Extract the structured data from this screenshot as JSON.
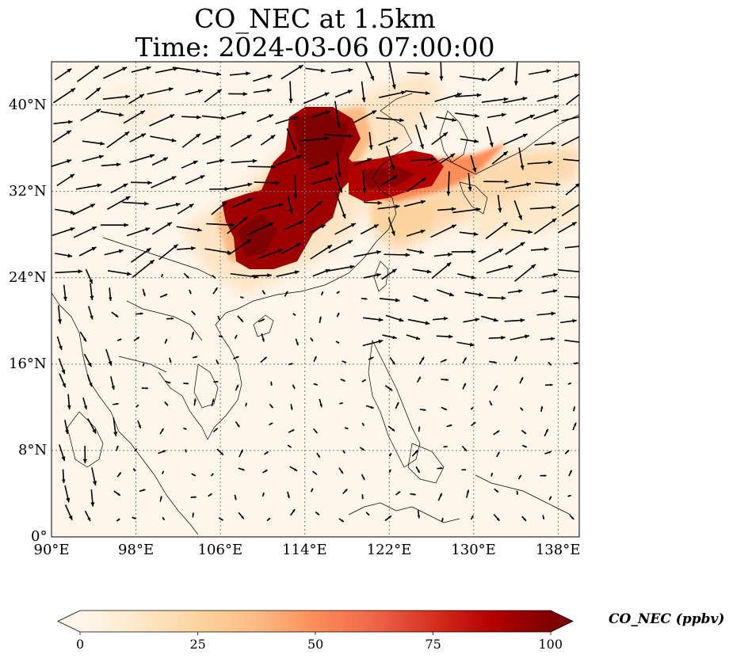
{
  "title": {
    "line1": "CO_NEC at 1.5km",
    "line2": "Time: 2024-03-06 07:00:00"
  },
  "map": {
    "extent": {
      "lon": [
        90,
        140
      ],
      "lat": [
        0,
        44
      ]
    },
    "x_ticks": [
      "90°E",
      "98°E",
      "106°E",
      "114°E",
      "122°E",
      "130°E",
      "138°E"
    ],
    "x_tick_values": [
      90,
      98,
      106,
      114,
      122,
      130,
      138
    ],
    "y_ticks": [
      "0°",
      "8°N",
      "16°N",
      "24°N",
      "32°N",
      "40°N"
    ],
    "y_tick_values": [
      0,
      8,
      16,
      24,
      32,
      40
    ],
    "gridlines": true,
    "background_color": "#fff5ea"
  },
  "colorbar": {
    "label": "CO_NEC (ppbv)",
    "ticks": [
      "0",
      "25",
      "50",
      "75",
      "100"
    ],
    "tick_values": [
      0,
      25,
      50,
      75,
      100
    ],
    "range": [
      0,
      100
    ],
    "colormap": "OrRd",
    "colors": [
      "#fff7ec",
      "#fee8c8",
      "#fdd49e",
      "#fdbb84",
      "#fc8d59",
      "#ef6548",
      "#d7301f",
      "#b30000",
      "#7f0000"
    ]
  }
}
